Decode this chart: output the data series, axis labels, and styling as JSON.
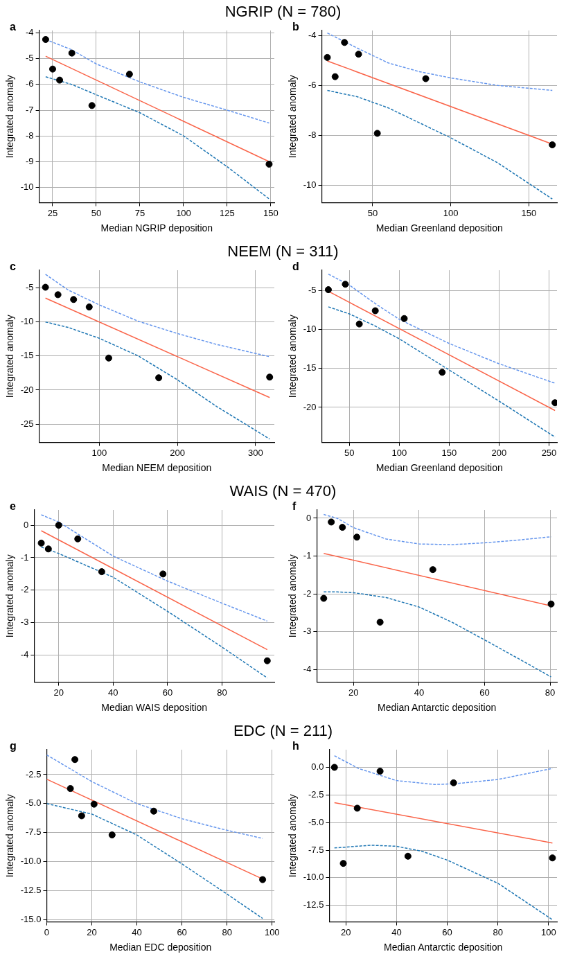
{
  "chart_data": [
    {
      "type": "scatter",
      "title": "NGRIP (N = 780)",
      "subtitle": "a",
      "xlabel": "Median NGRIP deposition",
      "ylabel": "Integrated anomaly",
      "xlim": [
        17.3,
        152
      ],
      "ylim": [
        -10.6,
        -3.9
      ],
      "xticks": [
        25,
        50,
        75,
        100,
        125,
        150
      ],
      "yticks": [
        -10,
        -9,
        -8,
        -7,
        -6,
        -5,
        -4
      ],
      "grid": true,
      "series": [
        {
          "type": "line",
          "line_style": "dashed",
          "marker": "none",
          "color": "#6495ed",
          "x": [
            21,
            36,
            50,
            75,
            100,
            125,
            149
          ],
          "values": [
            -4.25,
            -4.65,
            -5.2,
            -5.9,
            -6.5,
            -7.0,
            -7.5
          ]
        },
        {
          "type": "line",
          "line_style": "dashed",
          "marker": "none",
          "color": "#1f77b4",
          "x": [
            21,
            36,
            50,
            75,
            100,
            125,
            149
          ],
          "values": [
            -5.7,
            -6.0,
            -6.4,
            -7.1,
            -8.0,
            -9.2,
            -10.45
          ]
        },
        {
          "type": "line",
          "line_style": "solid",
          "marker": "none",
          "color": "#fa6449",
          "x": [
            21,
            149
          ],
          "values": [
            -4.9,
            -9.0
          ]
        },
        {
          "type": "scatter",
          "marker": "circle",
          "color": "#000000",
          "x": [
            21,
            25,
            29,
            36,
            47.5,
            69,
            149
          ],
          "values": [
            -4.25,
            -5.4,
            -5.83,
            -4.78,
            -6.82,
            -5.6,
            -9.1
          ]
        }
      ]
    },
    {
      "type": "scatter",
      "subtitle": "b",
      "xlabel": "Median Greenland deposition",
      "ylabel": "Integrated anomaly",
      "xlim": [
        17.5,
        168
      ],
      "ylim": [
        -10.7,
        -3.8
      ],
      "xticks": [
        50,
        100,
        150
      ],
      "yticks": [
        -10,
        -8,
        -6,
        -4
      ],
      "grid": true,
      "series": [
        {
          "type": "line",
          "line_style": "dashed",
          "marker": "none",
          "color": "#6495ed",
          "x": [
            21,
            40,
            60,
            80,
            100,
            130,
            165
          ],
          "values": [
            -3.9,
            -4.5,
            -5.1,
            -5.45,
            -5.7,
            -6.0,
            -6.2
          ]
        },
        {
          "type": "line",
          "line_style": "dashed",
          "marker": "none",
          "color": "#1f77b4",
          "x": [
            21,
            40,
            60,
            80,
            100,
            130,
            165
          ],
          "values": [
            -6.2,
            -6.45,
            -6.9,
            -7.5,
            -8.1,
            -9.1,
            -10.55
          ]
        },
        {
          "type": "line",
          "line_style": "solid",
          "marker": "none",
          "color": "#fa6449",
          "x": [
            21,
            165
          ],
          "values": [
            -5.02,
            -8.35
          ]
        },
        {
          "type": "scatter",
          "marker": "circle",
          "color": "#000000",
          "x": [
            21,
            26,
            32,
            41,
            53,
            84,
            165
          ],
          "values": [
            -4.88,
            -5.65,
            -4.28,
            -4.75,
            -7.92,
            -5.73,
            -8.38
          ]
        }
      ]
    },
    {
      "type": "scatter",
      "title": "NEEM (N = 311)",
      "subtitle": "c",
      "xlabel": "Median NEEM deposition",
      "ylabel": "Integrated anomaly",
      "xlim": [
        23,
        324
      ],
      "ylim": [
        -27.7,
        -2.4
      ],
      "xticks": [
        100,
        200,
        300
      ],
      "yticks": [
        -25,
        -20,
        -15,
        -10,
        -5
      ],
      "grid": true,
      "series": [
        {
          "type": "line",
          "line_style": "dashed",
          "marker": "none",
          "color": "#6495ed",
          "x": [
            31,
            60,
            100,
            150,
            200,
            250,
            318
          ],
          "values": [
            -3.0,
            -5.3,
            -7.5,
            -9.9,
            -11.7,
            -13.3,
            -15.1
          ]
        },
        {
          "type": "line",
          "line_style": "dashed",
          "marker": "none",
          "color": "#1f77b4",
          "x": [
            31,
            60,
            100,
            150,
            200,
            250,
            318
          ],
          "values": [
            -10.0,
            -10.8,
            -12.4,
            -15.0,
            -18.5,
            -22.4,
            -27.2
          ]
        },
        {
          "type": "line",
          "line_style": "solid",
          "marker": "none",
          "color": "#fa6449",
          "x": [
            31,
            318
          ],
          "values": [
            -6.5,
            -21.1
          ]
        },
        {
          "type": "scatter",
          "marker": "circle",
          "color": "#000000",
          "x": [
            31,
            47,
            67,
            87,
            112,
            176,
            318
          ],
          "values": [
            -4.9,
            -6.0,
            -6.7,
            -7.8,
            -15.3,
            -18.2,
            -18.1
          ]
        }
      ]
    },
    {
      "type": "scatter",
      "subtitle": "d",
      "xlabel": "Median Greenland deposition",
      "ylabel": "Integrated anomaly",
      "xlim": [
        22.5,
        258
      ],
      "ylim": [
        -24.5,
        -2.4
      ],
      "xticks": [
        50,
        100,
        150,
        200,
        250
      ],
      "yticks": [
        -20,
        -15,
        -10,
        -5
      ],
      "grid": true,
      "series": [
        {
          "type": "line",
          "line_style": "dashed",
          "marker": "none",
          "color": "#6495ed",
          "x": [
            29,
            50,
            75,
            100,
            150,
            200,
            256
          ],
          "values": [
            -2.9,
            -4.3,
            -6.6,
            -8.7,
            -11.8,
            -14.4,
            -16.9
          ]
        },
        {
          "type": "line",
          "line_style": "dashed",
          "marker": "none",
          "color": "#1f77b4",
          "x": [
            29,
            50,
            75,
            100,
            150,
            200,
            256
          ],
          "values": [
            -7.1,
            -8.0,
            -9.5,
            -11.2,
            -15.2,
            -19.2,
            -23.8
          ]
        },
        {
          "type": "line",
          "line_style": "solid",
          "marker": "none",
          "color": "#fa6449",
          "x": [
            29,
            256
          ],
          "values": [
            -5.1,
            -20.4
          ]
        },
        {
          "type": "scatter",
          "marker": "circle",
          "color": "#000000",
          "x": [
            29,
            46,
            60,
            76,
            105,
            143,
            256
          ],
          "values": [
            -4.9,
            -4.2,
            -9.3,
            -7.6,
            -8.6,
            -15.5,
            -19.4
          ]
        }
      ]
    },
    {
      "type": "scatter",
      "title": "WAIS (N = 470)",
      "subtitle": "e",
      "xlabel": "Median WAIS deposition",
      "ylabel": "Integrated anomaly",
      "xlim": [
        11,
        99.2
      ],
      "ylim": [
        -4.83,
        0.47
      ],
      "xticks": [
        20,
        40,
        60,
        80
      ],
      "yticks": [
        -4,
        -3,
        -2,
        -1,
        0
      ],
      "grid": true,
      "series": [
        {
          "type": "line",
          "line_style": "dashed",
          "marker": "none",
          "color": "#6495ed",
          "x": [
            13.6,
            20,
            40,
            60,
            80,
            96.6
          ],
          "values": [
            0.32,
            0.1,
            -0.95,
            -1.72,
            -2.4,
            -2.95
          ]
        },
        {
          "type": "line",
          "line_style": "dashed",
          "marker": "none",
          "color": "#1f77b4",
          "x": [
            13.6,
            20,
            40,
            60,
            80,
            96.6
          ],
          "values": [
            -0.67,
            -0.87,
            -1.6,
            -2.65,
            -3.75,
            -4.7
          ]
        },
        {
          "type": "line",
          "line_style": "solid",
          "marker": "none",
          "color": "#fa6449",
          "x": [
            13.6,
            96.6
          ],
          "values": [
            -0.17,
            -3.83
          ]
        },
        {
          "type": "scatter",
          "marker": "circle",
          "color": "#000000",
          "x": [
            13.6,
            16.2,
            20,
            27,
            35.8,
            58.3,
            96.6
          ],
          "values": [
            -0.55,
            -0.73,
            0.0,
            -0.42,
            -1.43,
            -1.5,
            -4.17
          ]
        }
      ]
    },
    {
      "type": "scatter",
      "subtitle": "f",
      "xlabel": "Median Antarctic deposition",
      "ylabel": "Integrated anomaly",
      "xlim": [
        8.8,
        82.1
      ],
      "ylim": [
        -4.34,
        0.22
      ],
      "xticks": [
        20,
        40,
        60,
        80
      ],
      "yticks": [
        -4,
        -3,
        -2,
        -1,
        0
      ],
      "grid": true,
      "series": [
        {
          "type": "line",
          "line_style": "dashed",
          "marker": "none",
          "color": "#6495ed",
          "x": [
            10.9,
            15,
            20,
            30,
            40,
            50,
            60,
            70,
            80.3
          ],
          "values": [
            0.1,
            0.0,
            -0.25,
            -0.55,
            -0.68,
            -0.7,
            -0.65,
            -0.58,
            -0.49
          ]
        },
        {
          "type": "line",
          "line_style": "dashed",
          "marker": "none",
          "color": "#1f77b4",
          "x": [
            10.9,
            15,
            20,
            30,
            40,
            50,
            60,
            70,
            80.3
          ],
          "values": [
            -1.95,
            -1.95,
            -1.97,
            -2.1,
            -2.35,
            -2.75,
            -3.22,
            -3.7,
            -4.2
          ]
        },
        {
          "type": "line",
          "line_style": "solid",
          "marker": "none",
          "color": "#fa6449",
          "x": [
            10.9,
            80.3
          ],
          "values": [
            -0.93,
            -2.32
          ]
        },
        {
          "type": "scatter",
          "marker": "circle",
          "color": "#000000",
          "x": [
            10.9,
            13.2,
            16.6,
            21,
            28.1,
            44.2,
            80.3
          ],
          "values": [
            -2.12,
            -0.1,
            -0.24,
            -0.5,
            -2.75,
            -1.36,
            -2.27
          ]
        }
      ]
    },
    {
      "type": "scatter",
      "title": "EDC (N = 211)",
      "subtitle": "g",
      "xlabel": "Median EDC deposition",
      "ylabel": "Integrated anomaly",
      "xlim": [
        0,
        101
      ],
      "ylim": [
        -15.2,
        -0.35
      ],
      "xticks": [
        0,
        20,
        40,
        60,
        80,
        100
      ],
      "yticks": [
        {
          "value": -15,
          "label": "-15.0"
        },
        -12.5,
        {
          "value": -10,
          "label": "-10.0"
        },
        -7.5,
        {
          "value": -5,
          "label": "-5.0"
        },
        -2.5
      ],
      "grid": true,
      "series": [
        {
          "type": "line",
          "line_style": "dashed",
          "marker": "none",
          "color": "#6495ed",
          "x": [
            0,
            20,
            40,
            60,
            80,
            95.8
          ],
          "values": [
            -0.8,
            -3.1,
            -5.0,
            -6.3,
            -7.3,
            -8.0
          ]
        },
        {
          "type": "line",
          "line_style": "dashed",
          "marker": "none",
          "color": "#1f77b4",
          "x": [
            0,
            20,
            40,
            60,
            80,
            95.8
          ],
          "values": [
            -5.0,
            -5.9,
            -7.7,
            -10.2,
            -12.8,
            -14.9
          ]
        },
        {
          "type": "line",
          "line_style": "solid",
          "marker": "none",
          "color": "#fa6449",
          "x": [
            0,
            95.8
          ],
          "values": [
            -2.9,
            -11.5
          ]
        },
        {
          "type": "scatter",
          "marker": "circle",
          "color": "#000000",
          "x": [
            10.5,
            12.5,
            15.5,
            21,
            29,
            47.5,
            95.8
          ],
          "values": [
            -3.7,
            -1.2,
            -6.05,
            -5.05,
            -7.7,
            -5.65,
            -11.55
          ]
        }
      ]
    },
    {
      "type": "scatter",
      "subtitle": "h",
      "xlabel": "Median Antarctic deposition",
      "ylabel": "Integrated anomaly",
      "xlim": [
        13.5,
        103.3
      ],
      "ylim": [
        -14,
        1.6
      ],
      "xticks": [
        20,
        40,
        60,
        80,
        100
      ],
      "yticks": [
        -12.5,
        {
          "value": -10,
          "label": "-10.0"
        },
        -7.5,
        {
          "value": -5,
          "label": "-5.0"
        },
        -2.5,
        {
          "value": 0,
          "label": "0.0"
        }
      ],
      "grid": true,
      "series": [
        {
          "type": "line",
          "line_style": "dashed",
          "marker": "none",
          "color": "#6495ed",
          "x": [
            15.5,
            25,
            40,
            55,
            62.5,
            80,
            101.5
          ],
          "values": [
            1.05,
            -0.1,
            -1.2,
            -1.55,
            -1.5,
            -1.1,
            -0.1
          ]
        },
        {
          "type": "line",
          "line_style": "dashed",
          "marker": "none",
          "color": "#1f77b4",
          "x": [
            15.5,
            30,
            40,
            50,
            60,
            80,
            101.5
          ],
          "values": [
            -7.3,
            -7.05,
            -7.15,
            -7.6,
            -8.4,
            -10.5,
            -13.8
          ]
        },
        {
          "type": "line",
          "line_style": "solid",
          "marker": "none",
          "color": "#fa6449",
          "x": [
            15.5,
            101.5
          ],
          "values": [
            -3.2,
            -6.85
          ]
        },
        {
          "type": "scatter",
          "marker": "circle",
          "color": "#000000",
          "x": [
            15.5,
            19,
            24.5,
            33.5,
            44.5,
            62.5,
            101.5
          ],
          "values": [
            0.0,
            -8.7,
            -3.7,
            -0.35,
            -8.05,
            -1.4,
            -8.2
          ]
        }
      ]
    }
  ]
}
